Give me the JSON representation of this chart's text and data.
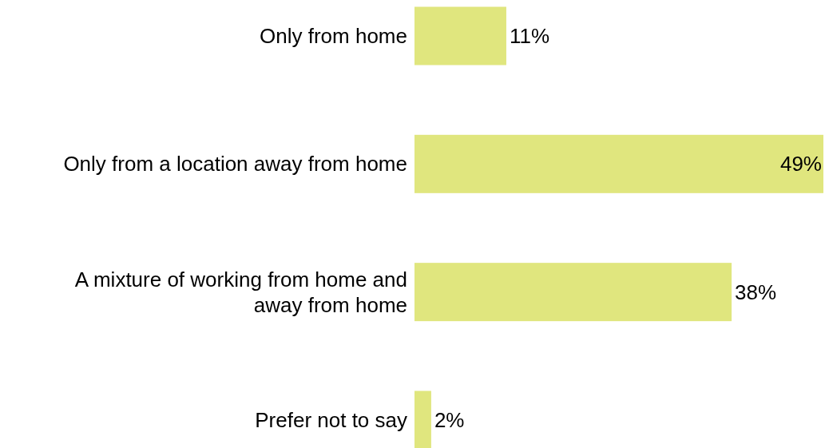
{
  "chart_data": {
    "type": "bar",
    "orientation": "horizontal",
    "categories": [
      "Only from home",
      "Only from a location away from home",
      "A mixture of working from home and away from home",
      "Prefer not to say"
    ],
    "values": [
      11,
      49,
      38,
      2
    ],
    "value_labels": [
      "11%",
      "49%",
      "38%",
      "2%"
    ],
    "color": "#e0e67e"
  }
}
